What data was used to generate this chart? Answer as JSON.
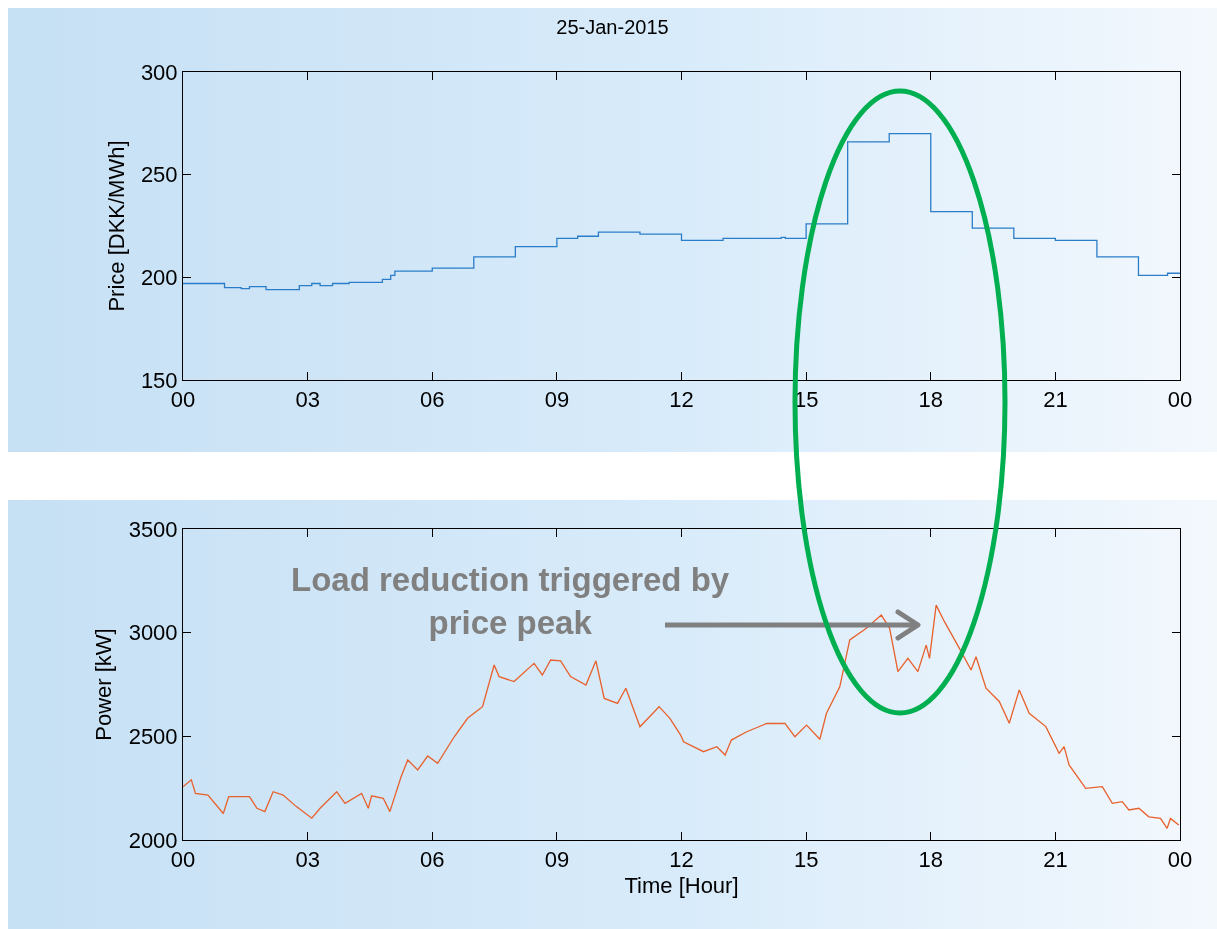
{
  "chart_data": [
    {
      "type": "step",
      "title": "25-Jan-2015",
      "ylabel": "Price [DKK/MWh]",
      "x": [
        0,
        1.0,
        1.4,
        1.6,
        2.0,
        2.8,
        3.1,
        3.3,
        3.6,
        4.0,
        4.8,
        5.0,
        5.1,
        6.0,
        7.0,
        8.0,
        9.0,
        9.5,
        10.0,
        11.0,
        12.0,
        13.0,
        14.4,
        14.5,
        15.0,
        16.0,
        17.0,
        18.0,
        19.0,
        20.0,
        21.0,
        22.0,
        23.0,
        23.7,
        24
      ],
      "series": [
        {
          "color": "#2a7dc9",
          "values": [
            197,
            195,
            194.5,
            195.5,
            194,
            196,
            197,
            196,
            197,
            197.5,
            199,
            201,
            203,
            204.5,
            210,
            215,
            219,
            220,
            222,
            221,
            218,
            219,
            219.5,
            219,
            226,
            266,
            270,
            232,
            224,
            219,
            218,
            210,
            201,
            202,
            202
          ]
        }
      ],
      "xlim": [
        0,
        24
      ],
      "xticks": [
        {
          "value": 0,
          "label": "00"
        },
        {
          "value": 3,
          "label": "03"
        },
        {
          "value": 6,
          "label": "06"
        },
        {
          "value": 9,
          "label": "09"
        },
        {
          "value": 12,
          "label": "12"
        },
        {
          "value": 15,
          "label": "15"
        },
        {
          "value": 18,
          "label": "18"
        },
        {
          "value": 21,
          "label": "21"
        },
        {
          "value": 24,
          "label": "00"
        }
      ],
      "ylim": [
        150,
        300
      ],
      "yticks": [
        150,
        200,
        250,
        300
      ],
      "grid": false
    },
    {
      "type": "line",
      "xlabel": "Time [Hour]",
      "ylabel": "Power [kW]",
      "x": [
        0,
        0.2,
        0.3,
        0.6,
        0.97,
        1.1,
        1.6,
        1.78,
        1.97,
        2.17,
        2.41,
        2.73,
        3.1,
        3.3,
        3.7,
        3.9,
        4.3,
        4.46,
        4.54,
        4.82,
        4.98,
        5.25,
        5.41,
        5.65,
        5.89,
        6.13,
        6.53,
        6.85,
        7.21,
        7.49,
        7.61,
        7.97,
        8.45,
        8.65,
        8.85,
        9.09,
        9.33,
        9.7,
        9.94,
        10.14,
        10.46,
        10.66,
        11.0,
        11.46,
        11.72,
        11.98,
        12.05,
        12.53,
        12.85,
        13.05,
        13.2,
        13.57,
        14.05,
        14.49,
        14.73,
        15.01,
        15.33,
        15.49,
        15.81,
        16.05,
        16.45,
        16.81,
        17.01,
        17.21,
        17.45,
        17.69,
        17.89,
        17.97,
        18.13,
        18.33,
        18.69,
        18.97,
        19.09,
        19.33,
        19.65,
        19.89,
        20.13,
        20.37,
        20.77,
        21.09,
        21.21,
        21.33,
        21.73,
        22.13,
        22.37,
        22.61,
        22.77,
        23.01,
        23.25,
        23.53,
        23.69,
        23.77,
        23.97
      ],
      "series": [
        {
          "color": "#e8602c",
          "values": [
            2257,
            2290,
            2225,
            2217,
            2128,
            2209,
            2209,
            2153,
            2137,
            2233,
            2217,
            2161,
            2105,
            2153,
            2233,
            2177,
            2225,
            2153,
            2213,
            2201,
            2137,
            2305,
            2386,
            2338,
            2405,
            2370,
            2498,
            2587,
            2643,
            2844,
            2788,
            2764,
            2852,
            2796,
            2868,
            2864,
            2788,
            2747,
            2864,
            2683,
            2659,
            2732,
            2546,
            2643,
            2587,
            2506,
            2474,
            2426,
            2450,
            2410,
            2482,
            2522,
            2562,
            2562,
            2498,
            2554,
            2486,
            2611,
            2739,
            2965,
            3021,
            3085,
            3021,
            2812,
            2876,
            2812,
            2940,
            2876,
            3133,
            3053,
            2924,
            2820,
            2884,
            2732,
            2668,
            2563,
            2724,
            2611,
            2547,
            2418,
            2450,
            2362,
            2249,
            2257,
            2177,
            2185,
            2145,
            2153,
            2112,
            2104,
            2056,
            2104,
            2072
          ]
        }
      ],
      "xlim": [
        0,
        24
      ],
      "xticks": [
        {
          "value": 0,
          "label": "00"
        },
        {
          "value": 3,
          "label": "03"
        },
        {
          "value": 6,
          "label": "06"
        },
        {
          "value": 9,
          "label": "09"
        },
        {
          "value": 12,
          "label": "12"
        },
        {
          "value": 15,
          "label": "15"
        },
        {
          "value": 18,
          "label": "18"
        },
        {
          "value": 21,
          "label": "21"
        },
        {
          "value": 24,
          "label": "00"
        }
      ],
      "ylim": [
        2000,
        3500
      ],
      "yticks": [
        2000,
        2500,
        3000,
        3500
      ],
      "grid": false,
      "annotations": [
        "Load reduction triggered by price peak"
      ]
    }
  ]
}
